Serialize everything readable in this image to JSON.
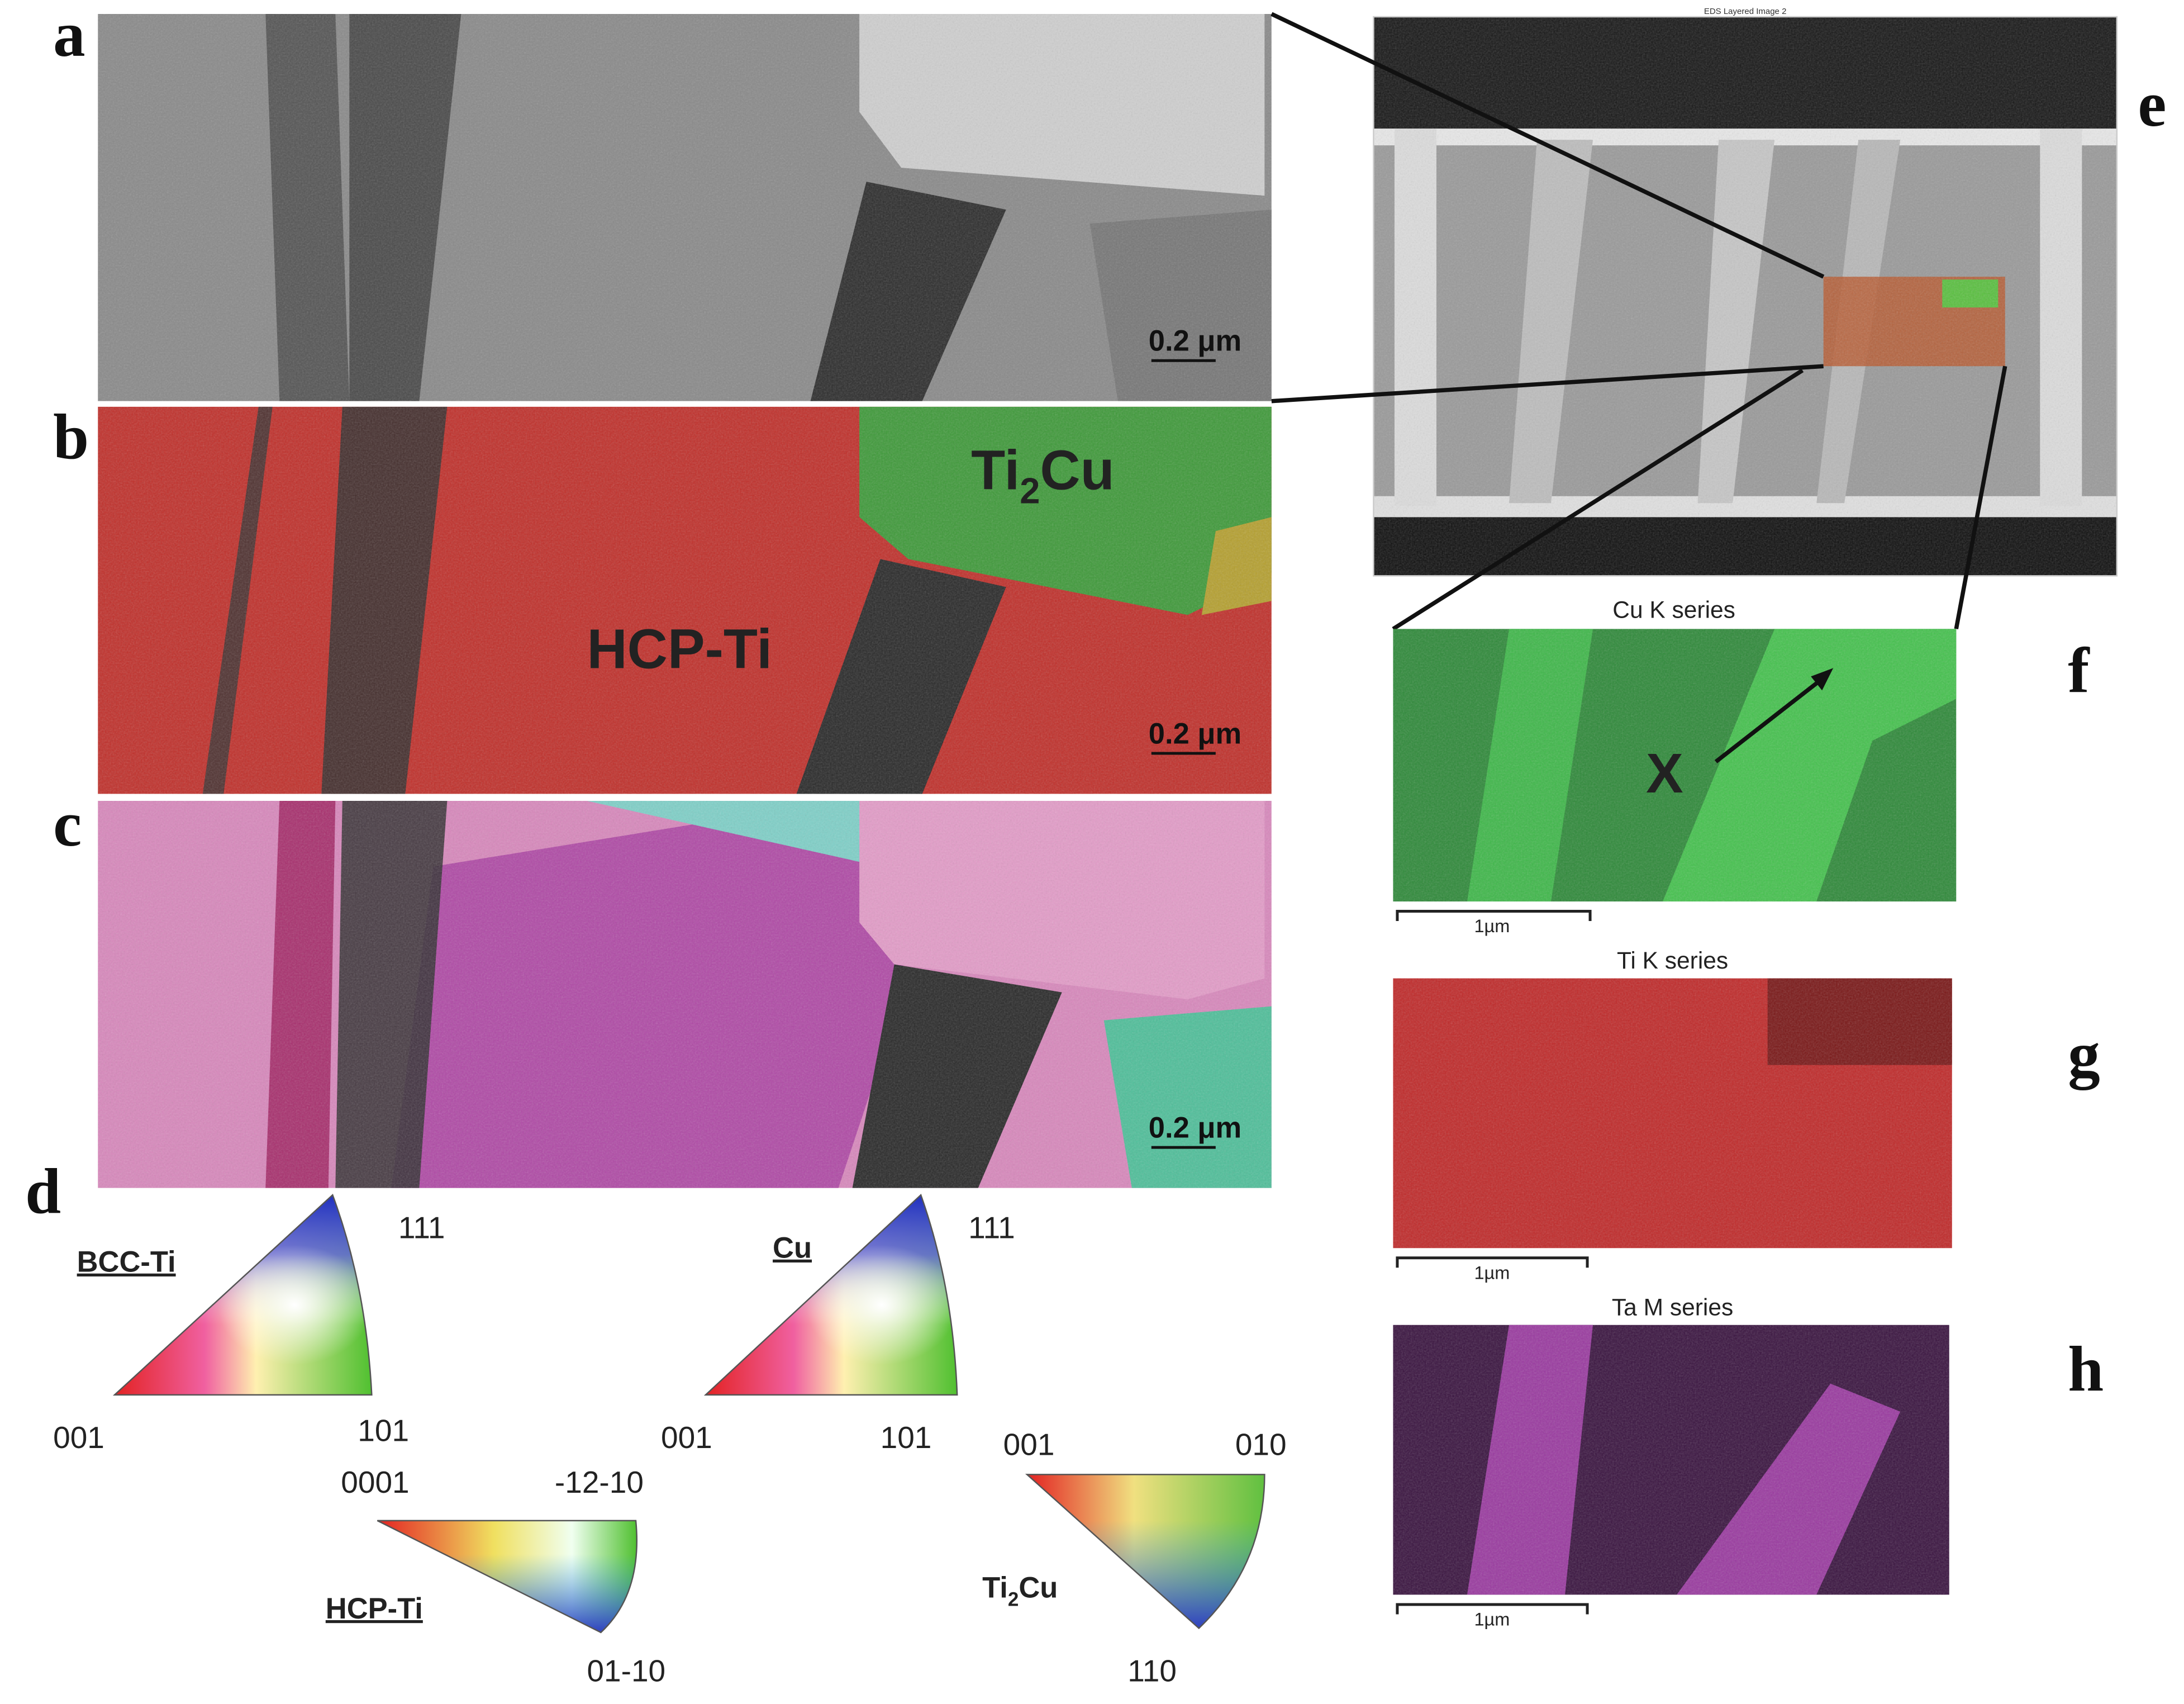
{
  "panels": {
    "a": {
      "label": "a",
      "scale_bar": "0.2 μm"
    },
    "b": {
      "label": "b",
      "scale_bar": "0.2 μm",
      "phase_hcp": "HCP-Ti",
      "phase_ti2cu": [
        "Ti",
        "2",
        "Cu"
      ]
    },
    "c": {
      "label": "c",
      "scale_bar": "0.2 μm"
    },
    "d": {
      "label": "d",
      "bcc": {
        "name": "BCC-Ti",
        "top": "111",
        "left": "001",
        "right": "101"
      },
      "cu": {
        "name": "Cu",
        "top": "111",
        "left": "001",
        "right": "101"
      },
      "hcp": {
        "name": "HCP-Ti",
        "left": "0001",
        "right": "-12-10",
        "bottom": "01-10"
      },
      "ti2cu": {
        "name": [
          "Ti",
          "2",
          "Cu"
        ],
        "left": "001",
        "right": "010",
        "bottom": "110"
      }
    },
    "e": {
      "label": "e",
      "image_title": "EDS Layered Image 2"
    },
    "f": {
      "label": "f",
      "title": "Cu K series",
      "scale_bar": "1µm",
      "marker": "X"
    },
    "g": {
      "label": "g",
      "title": "Ti K series",
      "scale_bar": "1µm"
    },
    "h": {
      "label": "h",
      "title": "Ta M series",
      "scale_bar": "1µm"
    }
  }
}
